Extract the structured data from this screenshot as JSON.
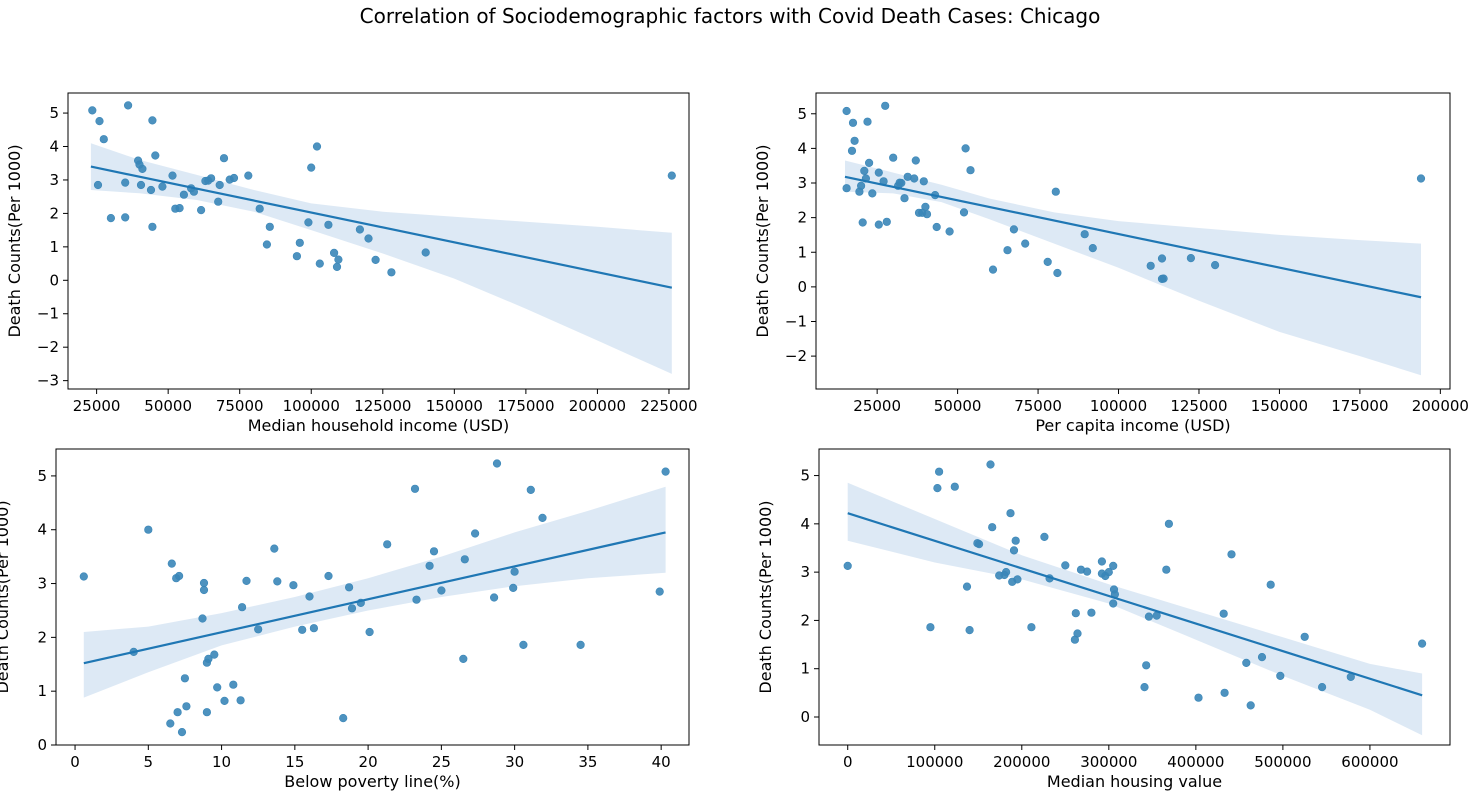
{
  "title": "Correlation of Sociodemographic factors with Covid Death Cases: Chicago",
  "colors": {
    "point": "#3a86b8",
    "line": "#1f77b4",
    "band": "#c6dbef"
  },
  "chart_data": [
    {
      "type": "scatter",
      "xlabel": "Median household income (USD)",
      "ylabel": "Death Counts(Per 1000)",
      "xlim": [
        15000,
        232000
      ],
      "ylim": [
        -3.25,
        5.6
      ],
      "xticks": [
        25000,
        50000,
        75000,
        100000,
        125000,
        150000,
        175000,
        200000,
        225000
      ],
      "yticks": [
        -3,
        -2,
        -1,
        0,
        1,
        2,
        3,
        4,
        5
      ],
      "regression": {
        "x": [
          23000,
          226000
        ],
        "y": [
          3.4,
          -0.22
        ]
      },
      "band": {
        "x": [
          23000,
          40000,
          60000,
          80000,
          100000,
          125000,
          150000,
          175000,
          200000,
          226000
        ],
        "upper": [
          4.1,
          3.6,
          3.15,
          2.7,
          2.3,
          2.05,
          1.9,
          1.75,
          1.6,
          1.42
        ],
        "lower": [
          2.7,
          2.6,
          2.4,
          2.05,
          1.5,
          0.8,
          0.05,
          -0.85,
          -1.8,
          -2.8
        ]
      },
      "x": [
        23500,
        26000,
        27500,
        36000,
        44500,
        25500,
        35000,
        39500,
        40000,
        41000,
        40500,
        45500,
        48000,
        44000,
        30000,
        35000,
        44500,
        51500,
        52500,
        55500,
        54000,
        58000,
        59000,
        61500,
        64000,
        63000,
        65000,
        68000,
        69500,
        71500,
        73000,
        78000,
        67500,
        82000,
        84500,
        85500,
        95000,
        96000,
        99000,
        100000,
        103000,
        102000,
        106000,
        108000,
        109500,
        109000,
        117000,
        120000,
        122500,
        128000,
        140000,
        226000
      ],
      "y": [
        5.08,
        4.76,
        4.22,
        5.23,
        4.78,
        2.85,
        2.92,
        3.58,
        3.46,
        3.33,
        2.85,
        3.73,
        2.8,
        2.7,
        1.86,
        1.88,
        1.6,
        3.13,
        2.14,
        2.56,
        2.16,
        2.75,
        2.65,
        2.1,
        2.98,
        2.97,
        3.05,
        2.85,
        3.65,
        3.01,
        3.06,
        3.13,
        2.35,
        2.14,
        1.07,
        1.6,
        0.72,
        1.12,
        1.73,
        3.37,
        0.5,
        4.0,
        1.66,
        0.82,
        0.62,
        0.4,
        1.52,
        1.25,
        0.61,
        0.24,
        0.83,
        3.13
      ]
    },
    {
      "type": "scatter",
      "xlabel": "Per capita income (USD)",
      "ylabel": "Death Counts(Per 1000)",
      "xlim": [
        6000,
        203000
      ],
      "ylim": [
        -2.95,
        5.6
      ],
      "xticks": [
        25000,
        50000,
        75000,
        100000,
        125000,
        150000,
        175000,
        200000
      ],
      "yticks": [
        -2,
        -1,
        0,
        1,
        2,
        3,
        4,
        5
      ],
      "regression": {
        "x": [
          15000,
          194000
        ],
        "y": [
          3.18,
          -0.3
        ]
      },
      "band": {
        "x": [
          15000,
          30000,
          45000,
          60000,
          80000,
          100000,
          125000,
          150000,
          175000,
          194000
        ],
        "upper": [
          3.65,
          3.3,
          2.95,
          2.55,
          2.15,
          1.9,
          1.7,
          1.5,
          1.35,
          1.25
        ],
        "lower": [
          2.75,
          2.7,
          2.45,
          1.95,
          1.25,
          0.55,
          -0.4,
          -1.3,
          -2.0,
          -2.55
        ]
      },
      "x": [
        15500,
        17500,
        18000,
        17200,
        27500,
        22000,
        15500,
        19500,
        20000,
        21000,
        22500,
        21500,
        23500,
        25500,
        27000,
        30000,
        31500,
        32500,
        33500,
        34500,
        36500,
        37000,
        38000,
        39500,
        40000,
        39000,
        43000,
        43500,
        47500,
        40500,
        20500,
        25500,
        28000,
        32000,
        52000,
        52500,
        54000,
        61000,
        65500,
        67500,
        71000,
        78000,
        80500,
        81000,
        89500,
        92000,
        110000,
        113500,
        114000,
        113500,
        122500,
        130000,
        194000
      ],
      "y": [
        5.08,
        4.74,
        4.22,
        3.93,
        5.23,
        4.77,
        2.85,
        2.75,
        2.92,
        3.35,
        3.58,
        3.13,
        2.7,
        3.3,
        3.05,
        3.73,
        2.92,
        3.0,
        2.56,
        3.18,
        3.13,
        3.65,
        2.14,
        3.05,
        2.31,
        2.14,
        2.65,
        1.73,
        1.6,
        2.1,
        1.86,
        1.8,
        1.88,
        3.01,
        2.15,
        4.0,
        3.37,
        0.5,
        1.06,
        1.66,
        1.25,
        0.72,
        2.75,
        0.4,
        1.52,
        1.12,
        0.61,
        0.82,
        0.24,
        0.23,
        0.83,
        0.63,
        3.13
      ]
    },
    {
      "type": "scatter",
      "xlabel": "Below poverty line(%)",
      "ylabel": "Death Counts(Per 1000)",
      "xlim": [
        -1.3,
        41.9
      ],
      "ylim": [
        0,
        5.5
      ],
      "xticks": [
        0,
        5,
        10,
        15,
        20,
        25,
        30,
        35,
        40
      ],
      "yticks": [
        0,
        1,
        2,
        3,
        4,
        5
      ],
      "regression": {
        "x": [
          0.6,
          40.3
        ],
        "y": [
          1.52,
          3.95
        ]
      },
      "band": {
        "x": [
          0.6,
          5,
          10,
          15,
          20,
          25,
          30,
          35,
          40.3
        ],
        "upper": [
          2.1,
          2.2,
          2.45,
          2.75,
          3.1,
          3.5,
          3.95,
          4.35,
          4.8
        ],
        "lower": [
          0.88,
          1.35,
          1.85,
          2.2,
          2.5,
          2.75,
          2.95,
          3.1,
          3.2
        ]
      },
      "x": [
        0.6,
        4.0,
        5.0,
        6.6,
        6.9,
        7.1,
        8.8,
        8.8,
        8.7,
        9.0,
        9.1,
        9.5,
        11.4,
        11.7,
        12.5,
        13.6,
        13.8,
        14.9,
        15.5,
        16.0,
        16.3,
        17.3,
        18.7,
        18.9,
        19.5,
        20.1,
        21.3,
        23.2,
        23.3,
        24.2,
        24.5,
        25.0,
        26.5,
        26.6,
        27.3,
        28.6,
        28.8,
        29.9,
        30.0,
        30.6,
        31.1,
        31.9,
        34.5,
        39.9,
        40.3,
        6.5,
        7.0,
        7.3,
        7.5,
        7.6,
        9.0,
        9.7,
        10.2,
        10.8,
        11.3,
        18.3
      ],
      "y": [
        3.13,
        1.73,
        4.0,
        3.37,
        3.1,
        3.14,
        3.01,
        2.88,
        2.35,
        1.53,
        1.6,
        1.68,
        2.56,
        3.05,
        2.15,
        3.65,
        3.04,
        2.97,
        2.14,
        2.76,
        2.17,
        3.14,
        2.93,
        2.54,
        2.64,
        2.1,
        3.73,
        4.76,
        2.7,
        3.33,
        3.6,
        2.87,
        1.6,
        3.45,
        3.93,
        2.74,
        5.23,
        2.92,
        3.22,
        1.86,
        4.74,
        4.22,
        1.86,
        2.85,
        5.08,
        0.4,
        0.61,
        0.24,
        1.24,
        0.72,
        0.61,
        1.07,
        0.82,
        1.12,
        0.83,
        0.5
      ]
    },
    {
      "type": "scatter",
      "xlabel": "Median housing value",
      "ylabel": "Death Counts(Per 1000)",
      "xlim": [
        -33000,
        692000
      ],
      "ylim": [
        -0.58,
        5.55
      ],
      "xticks": [
        0,
        100000,
        200000,
        300000,
        400000,
        500000,
        600000
      ],
      "yticks": [
        0,
        1,
        2,
        3,
        4,
        5
      ],
      "regression": {
        "x": [
          0,
          660000
        ],
        "y": [
          4.22,
          0.45
        ]
      },
      "band": {
        "x": [
          0,
          100000,
          200000,
          300000,
          400000,
          500000,
          600000,
          660000
        ],
        "upper": [
          4.85,
          4.1,
          3.35,
          2.75,
          2.2,
          1.65,
          1.1,
          0.9
        ],
        "lower": [
          3.65,
          3.2,
          2.85,
          2.35,
          1.6,
          0.85,
          0.15,
          -0.38
        ]
      },
      "x": [
        0,
        105000,
        103000,
        123000,
        164000,
        166000,
        187000,
        191000,
        193000,
        195000,
        189000,
        182000,
        180000,
        174000,
        226000,
        232000,
        250000,
        268000,
        275000,
        292000,
        292000,
        296000,
        300000,
        305000,
        306000,
        307000,
        305000,
        366000,
        369000,
        441000,
        432000,
        486000,
        525000,
        261000,
        264000,
        280000,
        341000,
        343000,
        355000,
        211000,
        149000,
        137000,
        95000,
        140000,
        151000,
        262000,
        346000,
        403000,
        433000,
        458000,
        463000,
        476000,
        497000,
        545000,
        578000,
        660000
      ],
      "y": [
        3.13,
        5.08,
        4.74,
        4.77,
        5.23,
        3.93,
        4.22,
        3.45,
        3.65,
        2.85,
        2.8,
        3.0,
        2.94,
        2.93,
        3.73,
        2.87,
        3.14,
        3.05,
        3.01,
        3.22,
        2.97,
        2.92,
        3.0,
        3.13,
        2.64,
        2.54,
        2.35,
        3.05,
        4.0,
        3.37,
        2.14,
        2.74,
        1.66,
        1.6,
        1.73,
        2.16,
        0.62,
        1.07,
        2.1,
        1.86,
        3.6,
        2.7,
        1.86,
        1.8,
        3.58,
        2.15,
        2.08,
        0.4,
        0.5,
        1.12,
        0.24,
        1.24,
        0.85,
        0.62,
        0.83,
        1.52
      ]
    }
  ]
}
